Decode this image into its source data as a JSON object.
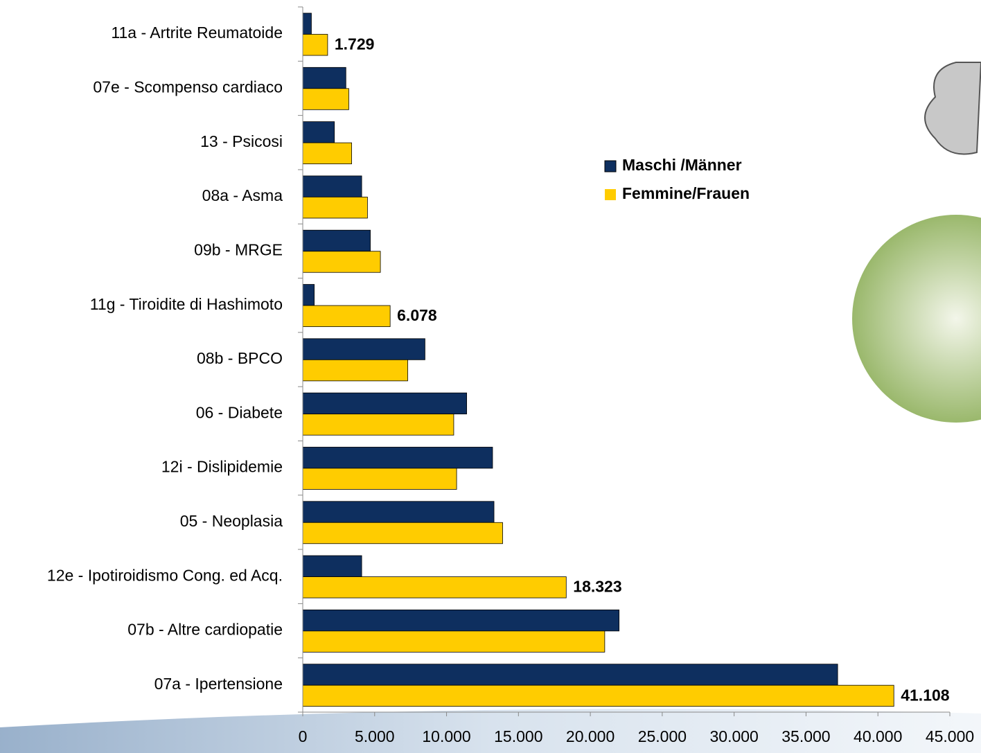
{
  "chart_data": {
    "type": "hbar",
    "categories": [
      "11a - Artrite Reumatoide",
      "07e - Scompenso cardiaco",
      "13 - Psicosi",
      "08a - Asma",
      "09b - MRGE",
      "11g - Tiroidite di Hashimoto",
      "08b - BPCO",
      "06 - Diabete",
      "12i - Dislipidemie",
      "05 - Neoplasia",
      "12e - Ipotiroidismo Cong. ed Acq.",
      "07b - Altre cardiopatie",
      "07a - Ipertensione"
    ],
    "series": [
      {
        "name": "Maschi /Männer",
        "color": "#0e2f5f",
        "values": [
          600,
          3000,
          2200,
          4100,
          4700,
          800,
          8500,
          11400,
          13200,
          13300,
          4100,
          22000,
          37200
        ]
      },
      {
        "name": "Femmine/Frauen",
        "color": "#ffcc00",
        "values": [
          1729,
          3200,
          3400,
          4500,
          5400,
          6078,
          7300,
          10500,
          10700,
          13900,
          18323,
          21000,
          41108
        ],
        "value_labels": [
          "1.729",
          null,
          null,
          null,
          null,
          "6.078",
          null,
          null,
          null,
          null,
          "18.323",
          null,
          "41.108"
        ]
      }
    ],
    "xlim": [
      0,
      45000
    ],
    "xticks": [
      0,
      {
        "value": 5000,
        "label": "5.000"
      },
      {
        "value": 10000,
        "label": "10.000"
      },
      {
        "value": 15000,
        "label": "15.000"
      },
      {
        "value": 20000,
        "label": "20.000"
      },
      {
        "value": 25000,
        "label": "25.000"
      },
      {
        "value": 30000,
        "label": "30.000"
      },
      {
        "value": 35000,
        "label": "35.000"
      },
      {
        "value": 40000,
        "label": "40.000"
      },
      {
        "value": 45000,
        "label": "45.000"
      }
    ],
    "legend": "right"
  }
}
